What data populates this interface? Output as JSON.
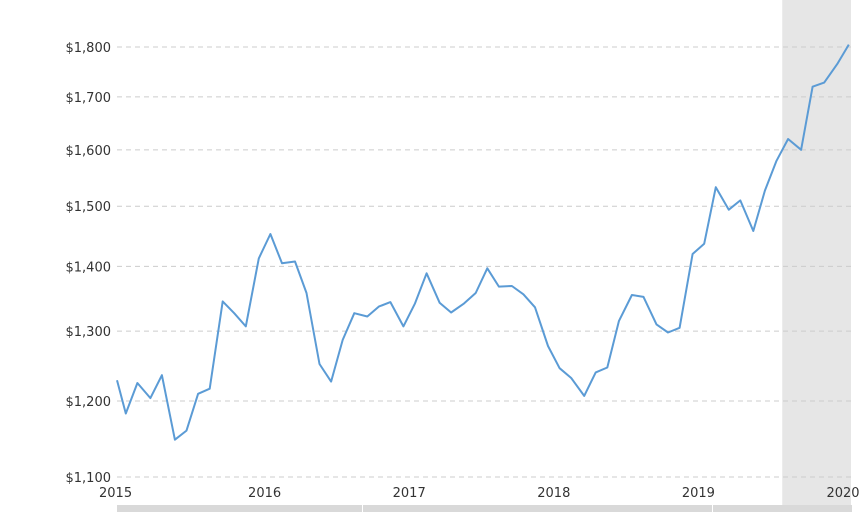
{
  "chart_data": {
    "type": "line",
    "scale": "log",
    "ylim": [
      1100,
      1850
    ],
    "y_ticks": [
      1100,
      1200,
      1300,
      1400,
      1500,
      1600,
      1700,
      1800
    ],
    "y_tick_labels": [
      "$1,100",
      "$1,200",
      "$1,300",
      "$1,400",
      "$1,500",
      "$1,600",
      "$1,700",
      "$1,800"
    ],
    "x_ticks": [
      2015,
      2016,
      2017,
      2018,
      2019,
      2020
    ],
    "x_tick_labels": [
      "2015",
      "2016",
      "2017",
      "2018",
      "2019",
      "2020"
    ],
    "grid": true,
    "highlight_range": [
      2019.58,
      2020.0
    ],
    "colors": {
      "line": "#5b9bd5",
      "highlight": "#e6e6e6",
      "grid": "#cccccc"
    },
    "series": [
      {
        "x": [
          2015.0,
          2015.04,
          2015.12,
          2015.21,
          2015.29,
          2015.38,
          2015.46,
          2015.54,
          2015.62,
          2015.71,
          2015.79,
          2015.87,
          2015.96,
          2016.04,
          2016.12,
          2016.21,
          2016.29,
          2016.38,
          2016.46,
          2016.54,
          2016.62,
          2016.71,
          2016.79,
          2016.87,
          2016.96,
          2017.04,
          2017.12,
          2017.21,
          2017.29,
          2017.38,
          2017.46,
          2017.54,
          2017.62,
          2017.71,
          2017.79,
          2017.87,
          2017.96,
          2018.04,
          2018.12,
          2018.21,
          2018.29,
          2018.37,
          2018.45,
          2018.54,
          2018.62,
          2018.71,
          2018.79,
          2018.87,
          2018.96,
          2019.04,
          2019.12,
          2019.21,
          2019.29,
          2019.38,
          2019.46,
          2019.54,
          2019.62,
          2019.71,
          2019.79,
          2019.87,
          2019.96,
          2020.04
        ],
        "y": [
          1229,
          1183,
          1225,
          1204,
          1236,
          1148,
          1160,
          1210,
          1217,
          1345,
          1327,
          1307,
          1413,
          1453,
          1405,
          1408,
          1358,
          1252,
          1227,
          1287,
          1327,
          1322,
          1337,
          1344,
          1307,
          1342,
          1389,
          1343,
          1328,
          1342,
          1358,
          1397,
          1368,
          1369,
          1356,
          1336,
          1278,
          1246,
          1232,
          1207,
          1240,
          1247,
          1315,
          1355,
          1352,
          1310,
          1298,
          1305,
          1420,
          1437,
          1533,
          1494,
          1510,
          1458,
          1527,
          1580,
          1620,
          1600,
          1720,
          1728,
          1765,
          1805
        ]
      }
    ]
  }
}
